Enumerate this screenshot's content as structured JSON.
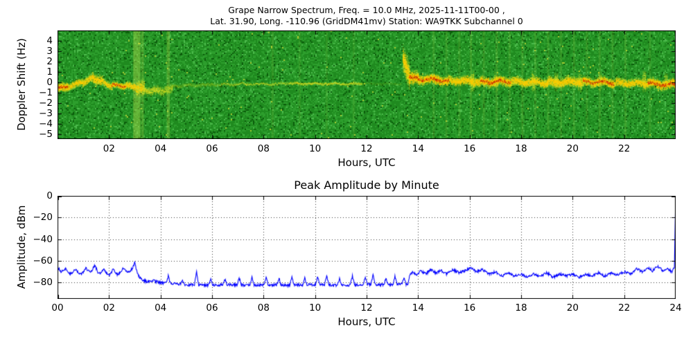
{
  "window": {
    "background": "#ffffff"
  },
  "chart_data": [
    {
      "type": "heatmap",
      "title": "Grape Narrow Spectrum, Freq. = 10.0 MHz, 2025-11-11T00-00 ,",
      "subtitle": "Lat.  31.90, Long. -110.96 (GridDM41mv) Station: WA9TKK Subchannel 0",
      "xlabel": "Hours, UTC",
      "ylabel": "Doppler Shift (Hz)",
      "xlim": [
        0,
        24
      ],
      "ylim": [
        -5.5,
        5
      ],
      "xticks": [
        2,
        4,
        6,
        8,
        10,
        12,
        14,
        16,
        18,
        20,
        22
      ],
      "xtick_labels": [
        "02",
        "04",
        "06",
        "08",
        "10",
        "12",
        "14",
        "16",
        "18",
        "20",
        "22"
      ],
      "yticks": [
        4,
        3,
        2,
        1,
        0,
        -1,
        -2,
        -3,
        -4,
        -5
      ],
      "ytick_labels": [
        "4",
        "3",
        "2",
        "1",
        "0",
        "−1",
        "−2",
        "−3",
        "−4",
        "−5"
      ],
      "palette": {
        "noise": [
          "#0b5c0b",
          "#1f8a1f",
          "#2d9e2d",
          "#4cbb4c",
          "#a8cc32"
        ],
        "signal_weak": "#d0e028",
        "signal_strong": "#ffcc00",
        "signal_core": "#cc2a00",
        "bright_column": "rgba(190,225,80,"
      },
      "bright_columns": [
        {
          "t": 3.08,
          "w": 0.28,
          "a": 0.4
        },
        {
          "t": 3.3,
          "w": 0.1,
          "a": 0.25
        },
        {
          "t": 4.3,
          "w": 0.12,
          "a": 0.3
        },
        {
          "t": 8.35,
          "w": 0.08,
          "a": 0.12
        },
        {
          "t": 9.4,
          "w": 0.08,
          "a": 0.1
        },
        {
          "t": 10.45,
          "w": 0.08,
          "a": 0.1
        },
        {
          "t": 11.5,
          "w": 0.08,
          "a": 0.1
        },
        {
          "t": 14.6,
          "w": 0.08,
          "a": 0.15
        },
        {
          "t": 15.1,
          "w": 0.08,
          "a": 0.13
        },
        {
          "t": 15.6,
          "w": 0.08,
          "a": 0.13
        },
        {
          "t": 16.05,
          "w": 0.08,
          "a": 0.18
        },
        {
          "t": 16.55,
          "w": 0.08,
          "a": 0.15
        },
        {
          "t": 17.05,
          "w": 0.08,
          "a": 0.16
        },
        {
          "t": 17.55,
          "w": 0.08,
          "a": 0.14
        },
        {
          "t": 18.05,
          "w": 0.08,
          "a": 0.16
        },
        {
          "t": 18.55,
          "w": 0.08,
          "a": 0.14
        },
        {
          "t": 19.05,
          "w": 0.08,
          "a": 0.15
        },
        {
          "t": 19.55,
          "w": 0.08,
          "a": 0.13
        },
        {
          "t": 20.05,
          "w": 0.08,
          "a": 0.15
        },
        {
          "t": 20.55,
          "w": 0.08,
          "a": 0.13
        },
        {
          "t": 21.05,
          "w": 0.08,
          "a": 0.15
        },
        {
          "t": 21.55,
          "w": 0.08,
          "a": 0.13
        },
        {
          "t": 22.05,
          "w": 0.08,
          "a": 0.14
        },
        {
          "t": 23.0,
          "w": 0.08,
          "a": 0.12
        }
      ],
      "trace_segments": [
        {
          "t0": 0.0,
          "t1": 0.4,
          "y0": -0.55,
          "y1": -0.45,
          "spread": 0.55,
          "i": 1.0
        },
        {
          "t0": 0.4,
          "t1": 0.95,
          "y0": -0.4,
          "y1": 0.0,
          "spread": 0.45,
          "i": 0.85
        },
        {
          "t0": 0.95,
          "t1": 1.35,
          "y0": 0.0,
          "y1": 0.45,
          "spread": 0.5,
          "i": 0.85
        },
        {
          "t0": 1.35,
          "t1": 1.75,
          "y0": 0.5,
          "y1": 0.15,
          "spread": 0.65,
          "i": 0.9
        },
        {
          "t0": 1.75,
          "t1": 2.1,
          "y0": 0.0,
          "y1": -0.3,
          "spread": 0.45,
          "i": 0.8
        },
        {
          "t0": 2.1,
          "t1": 2.65,
          "y0": -0.3,
          "y1": -0.3,
          "spread": 0.4,
          "i": 1.0
        },
        {
          "t0": 2.65,
          "t1": 3.05,
          "y0": -0.3,
          "y1": -0.5,
          "spread": 0.5,
          "i": 0.85
        },
        {
          "t0": 3.05,
          "t1": 3.35,
          "y0": -0.5,
          "y1": -0.6,
          "spread": 0.95,
          "i": 0.7
        },
        {
          "t0": 3.35,
          "t1": 3.9,
          "y0": -0.7,
          "y1": -0.8,
          "spread": 0.5,
          "i": 0.55
        },
        {
          "t0": 3.9,
          "t1": 4.45,
          "y0": -0.8,
          "y1": -0.6,
          "spread": 0.55,
          "i": 0.4
        },
        {
          "t0": 4.45,
          "t1": 6.35,
          "y0": -0.3,
          "y1": -0.2,
          "spread": 0.25,
          "i": 0.15
        },
        {
          "t0": 6.35,
          "t1": 9.0,
          "y0": -0.15,
          "y1": -0.1,
          "spread": 0.13,
          "i": 0.45
        },
        {
          "t0": 9.0,
          "t1": 11.8,
          "y0": -0.1,
          "y1": -0.1,
          "spread": 0.15,
          "i": 0.55
        },
        {
          "t0": 11.8,
          "t1": 13.35,
          "y0": -0.1,
          "y1": -0.1,
          "spread": 0.12,
          "i": 0.1
        },
        {
          "t0": 13.4,
          "t1": 13.65,
          "y0": 2.2,
          "y1": 0.6,
          "spread": 1.6,
          "i": 0.85
        },
        {
          "t0": 13.65,
          "t1": 14.0,
          "y0": 0.6,
          "y1": 0.35,
          "spread": 0.8,
          "i": 1.0
        },
        {
          "t0": 14.0,
          "t1": 15.2,
          "y0": 0.35,
          "y1": 0.2,
          "spread": 0.6,
          "i": 1.0
        },
        {
          "t0": 15.2,
          "t1": 16.4,
          "y0": 0.2,
          "y1": 0.1,
          "spread": 0.55,
          "i": 0.9
        },
        {
          "t0": 16.4,
          "t1": 17.6,
          "y0": 0.1,
          "y1": 0.1,
          "spread": 0.6,
          "i": 1.0
        },
        {
          "t0": 17.6,
          "t1": 19.0,
          "y0": 0.1,
          "y1": 0.0,
          "spread": 0.55,
          "i": 0.9
        },
        {
          "t0": 19.0,
          "t1": 20.4,
          "y0": 0.0,
          "y1": 0.1,
          "spread": 0.6,
          "i": 0.9
        },
        {
          "t0": 20.4,
          "t1": 21.6,
          "y0": 0.1,
          "y1": 0.0,
          "spread": 0.55,
          "i": 0.95
        },
        {
          "t0": 21.6,
          "t1": 22.9,
          "y0": 0.0,
          "y1": -0.1,
          "spread": 0.5,
          "i": 0.9
        },
        {
          "t0": 22.9,
          "t1": 24.0,
          "y0": -0.1,
          "y1": -0.2,
          "spread": 0.6,
          "i": 1.0
        }
      ],
      "burst_columns": [
        {
          "t": 16.1,
          "spread": 1.3,
          "i": 0.5
        },
        {
          "t": 17.0,
          "spread": 1.1,
          "i": 0.45
        },
        {
          "t": 18.45,
          "spread": 1.2,
          "i": 0.5
        },
        {
          "t": 19.35,
          "spread": 1.1,
          "i": 0.45
        },
        {
          "t": 20.25,
          "spread": 1.2,
          "i": 0.45
        },
        {
          "t": 21.05,
          "spread": 1.1,
          "i": 0.45
        },
        {
          "t": 22.75,
          "spread": 1.3,
          "i": 0.5
        },
        {
          "t": 23.6,
          "spread": 1.0,
          "i": 0.4
        }
      ]
    },
    {
      "type": "line",
      "title": "Peak Amplitude by Minute",
      "xlabel": "Hours, UTC",
      "ylabel": "Amplitude, dBm",
      "xlim": [
        0,
        24
      ],
      "ylim": [
        -95,
        0
      ],
      "xticks": [
        0,
        2,
        4,
        6,
        8,
        10,
        12,
        14,
        16,
        18,
        20,
        22,
        24
      ],
      "xtick_labels": [
        "00",
        "02",
        "04",
        "06",
        "08",
        "10",
        "12",
        "14",
        "16",
        "18",
        "20",
        "22",
        "24"
      ],
      "yticks": [
        0,
        -20,
        -40,
        -60,
        -80
      ],
      "ytick_labels": [
        "0",
        "−20",
        "−40",
        "−60",
        "−80"
      ],
      "grid": true,
      "series": [
        {
          "name": "peak_amplitude_dbm",
          "color": "#0000ff",
          "noise_db": 1.2,
          "keypoints": [
            [
              0.0,
              -66
            ],
            [
              0.15,
              -70
            ],
            [
              0.3,
              -67
            ],
            [
              0.5,
              -72
            ],
            [
              0.7,
              -68
            ],
            [
              0.9,
              -73
            ],
            [
              1.1,
              -67
            ],
            [
              1.3,
              -70
            ],
            [
              1.45,
              -64
            ],
            [
              1.6,
              -72
            ],
            [
              1.8,
              -68
            ],
            [
              2.0,
              -74
            ],
            [
              2.15,
              -68
            ],
            [
              2.35,
              -73
            ],
            [
              2.55,
              -67
            ],
            [
              2.75,
              -71
            ],
            [
              2.9,
              -67
            ],
            [
              3.0,
              -62
            ],
            [
              3.1,
              -72
            ],
            [
              3.25,
              -77
            ],
            [
              3.45,
              -79
            ],
            [
              3.7,
              -78
            ],
            [
              4.0,
              -80
            ],
            [
              4.5,
              -81
            ],
            [
              5.0,
              -82
            ],
            [
              5.5,
              -82
            ],
            [
              6.0,
              -82.5
            ],
            [
              6.5,
              -82
            ],
            [
              7.0,
              -82
            ],
            [
              7.5,
              -82.5
            ],
            [
              8.0,
              -82
            ],
            [
              8.5,
              -82
            ],
            [
              9.0,
              -82.5
            ],
            [
              9.5,
              -82
            ],
            [
              10.0,
              -82
            ],
            [
              10.5,
              -82
            ],
            [
              11.0,
              -82.5
            ],
            [
              11.5,
              -82
            ],
            [
              12.0,
              -81.5
            ],
            [
              12.5,
              -82
            ],
            [
              13.0,
              -82
            ],
            [
              13.3,
              -81.5
            ],
            [
              13.6,
              -82
            ],
            [
              13.68,
              -73
            ],
            [
              13.8,
              -70
            ],
            [
              13.95,
              -73
            ],
            [
              14.1,
              -69
            ],
            [
              14.3,
              -72
            ],
            [
              14.5,
              -68
            ],
            [
              14.7,
              -71
            ],
            [
              14.9,
              -69
            ],
            [
              15.1,
              -72
            ],
            [
              15.35,
              -68
            ],
            [
              15.6,
              -71
            ],
            [
              15.85,
              -69
            ],
            [
              16.05,
              -66
            ],
            [
              16.25,
              -70
            ],
            [
              16.5,
              -68
            ],
            [
              16.75,
              -72
            ],
            [
              17.0,
              -70
            ],
            [
              17.25,
              -74
            ],
            [
              17.5,
              -71
            ],
            [
              17.75,
              -74
            ],
            [
              18.0,
              -72
            ],
            [
              18.25,
              -75
            ],
            [
              18.5,
              -72
            ],
            [
              18.75,
              -74
            ],
            [
              19.0,
              -71
            ],
            [
              19.25,
              -75
            ],
            [
              19.5,
              -72
            ],
            [
              19.75,
              -74
            ],
            [
              20.0,
              -72
            ],
            [
              20.25,
              -75
            ],
            [
              20.5,
              -72
            ],
            [
              20.75,
              -74
            ],
            [
              21.0,
              -71
            ],
            [
              21.25,
              -74
            ],
            [
              21.5,
              -71
            ],
            [
              21.75,
              -73
            ],
            [
              22.0,
              -70
            ],
            [
              22.25,
              -72
            ],
            [
              22.5,
              -67
            ],
            [
              22.7,
              -70
            ],
            [
              22.9,
              -66
            ],
            [
              23.1,
              -69
            ],
            [
              23.3,
              -65
            ],
            [
              23.5,
              -69
            ],
            [
              23.7,
              -67
            ],
            [
              23.85,
              -70
            ],
            [
              23.95,
              -66
            ],
            [
              24.0,
              0
            ]
          ],
          "spikes": [
            [
              4.3,
              -74
            ],
            [
              4.85,
              -77
            ],
            [
              5.4,
              -70
            ],
            [
              5.95,
              -76
            ],
            [
              6.5,
              -77
            ],
            [
              7.05,
              -75
            ],
            [
              7.55,
              -74
            ],
            [
              8.1,
              -75
            ],
            [
              8.6,
              -76
            ],
            [
              9.1,
              -74
            ],
            [
              9.6,
              -76
            ],
            [
              10.1,
              -74
            ],
            [
              10.45,
              -73
            ],
            [
              10.95,
              -76
            ],
            [
              11.45,
              -74
            ],
            [
              11.95,
              -75
            ],
            [
              12.25,
              -72
            ],
            [
              12.75,
              -76
            ],
            [
              13.1,
              -74
            ],
            [
              13.45,
              -75
            ]
          ]
        }
      ]
    }
  ]
}
